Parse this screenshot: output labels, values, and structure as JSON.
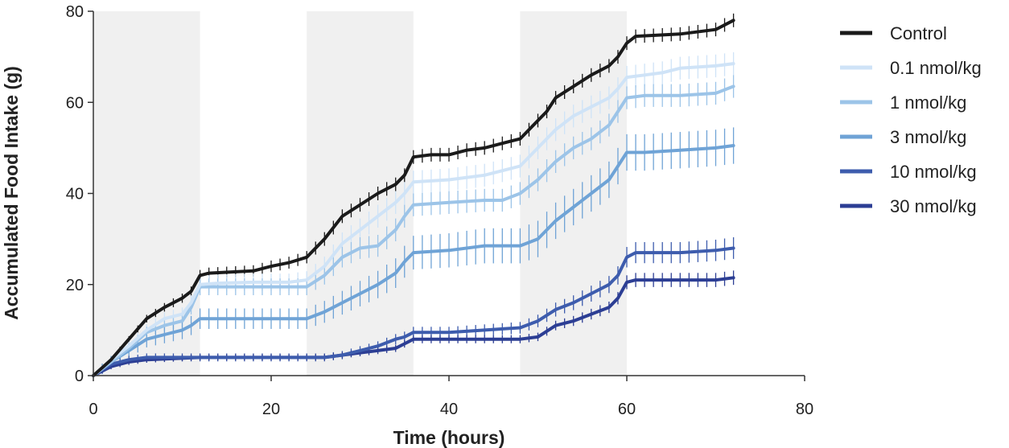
{
  "chart_data": {
    "type": "line",
    "title": "",
    "xlabel": "Time (hours)",
    "ylabel": "Accumulated Food Intake (g)",
    "xlim": [
      0,
      80
    ],
    "ylim": [
      0,
      80
    ],
    "x_ticks": [
      "0",
      "20",
      "40",
      "60",
      "80"
    ],
    "y_ticks": [
      "0",
      "20",
      "40",
      "60",
      "80"
    ],
    "dark_periods": [
      [
        0,
        12
      ],
      [
        24,
        36
      ],
      [
        48,
        60
      ]
    ],
    "shade_color": "#f0f0f0",
    "legend_position": "right",
    "error_bars": true,
    "series": [
      {
        "name": "Control",
        "color": "#1a1a1a",
        "points": [
          [
            0,
            0
          ],
          [
            2,
            3.5
          ],
          [
            4,
            8
          ],
          [
            6,
            12.5
          ],
          [
            8,
            15
          ],
          [
            10,
            17
          ],
          [
            11,
            18.5
          ],
          [
            12,
            22
          ],
          [
            13,
            22.5
          ],
          [
            18,
            23
          ],
          [
            20,
            24
          ],
          [
            22,
            24.8
          ],
          [
            24,
            26
          ],
          [
            26,
            30
          ],
          [
            28,
            35
          ],
          [
            30,
            37.5
          ],
          [
            32,
            40
          ],
          [
            34,
            42
          ],
          [
            35,
            44
          ],
          [
            36,
            48
          ],
          [
            38,
            48.5
          ],
          [
            40,
            48.5
          ],
          [
            42,
            49.5
          ],
          [
            44,
            50
          ],
          [
            46,
            51
          ],
          [
            48,
            52
          ],
          [
            50,
            56
          ],
          [
            51,
            58
          ],
          [
            52,
            61
          ],
          [
            54,
            63.5
          ],
          [
            56,
            66
          ],
          [
            58,
            68
          ],
          [
            59,
            70
          ],
          [
            60,
            73
          ],
          [
            61,
            74.5
          ],
          [
            66,
            75
          ],
          [
            70,
            76
          ],
          [
            72,
            78
          ]
        ],
        "error": 1.5
      },
      {
        "name": "0.1 nmol/kg",
        "color": "#cfe3f7",
        "points": [
          [
            0,
            0
          ],
          [
            2,
            3.5
          ],
          [
            4,
            6.5
          ],
          [
            6,
            10
          ],
          [
            8,
            12.5
          ],
          [
            10,
            13.5
          ],
          [
            11,
            16
          ],
          [
            12,
            20
          ],
          [
            14,
            20.3
          ],
          [
            18,
            20.5
          ],
          [
            22,
            20.5
          ],
          [
            24,
            21
          ],
          [
            26,
            24
          ],
          [
            28,
            29
          ],
          [
            30,
            32
          ],
          [
            32,
            35
          ],
          [
            34,
            38
          ],
          [
            35,
            40
          ],
          [
            36,
            42.5
          ],
          [
            40,
            43
          ],
          [
            44,
            44
          ],
          [
            46,
            45
          ],
          [
            48,
            46
          ],
          [
            50,
            50
          ],
          [
            52,
            54
          ],
          [
            54,
            57
          ],
          [
            56,
            59
          ],
          [
            58,
            61
          ],
          [
            59,
            63
          ],
          [
            60,
            65.5
          ],
          [
            62,
            66
          ],
          [
            64,
            66.5
          ],
          [
            66,
            67.5
          ],
          [
            70,
            68
          ],
          [
            72,
            68.5
          ]
        ],
        "error": 2.5
      },
      {
        "name": "1 nmol/kg",
        "color": "#9cc4e8",
        "points": [
          [
            0,
            0
          ],
          [
            2,
            3
          ],
          [
            4,
            6
          ],
          [
            6,
            9.5
          ],
          [
            8,
            11
          ],
          [
            10,
            12
          ],
          [
            11,
            15
          ],
          [
            12,
            19.5
          ],
          [
            14,
            19.5
          ],
          [
            20,
            19.5
          ],
          [
            24,
            19.5
          ],
          [
            26,
            22
          ],
          [
            28,
            26
          ],
          [
            30,
            28
          ],
          [
            32,
            28.5
          ],
          [
            34,
            32
          ],
          [
            35,
            35
          ],
          [
            36,
            37.5
          ],
          [
            40,
            38
          ],
          [
            44,
            38.5
          ],
          [
            46,
            38.5
          ],
          [
            48,
            40
          ],
          [
            50,
            43
          ],
          [
            52,
            47
          ],
          [
            54,
            50
          ],
          [
            56,
            52
          ],
          [
            58,
            55
          ],
          [
            59,
            58
          ],
          [
            60,
            61
          ],
          [
            62,
            61.5
          ],
          [
            66,
            61.5
          ],
          [
            70,
            62
          ],
          [
            72,
            63.5
          ]
        ],
        "error": 2.5
      },
      {
        "name": "3 nmol/kg",
        "color": "#6fa3d6",
        "points": [
          [
            0,
            0
          ],
          [
            2,
            3
          ],
          [
            4,
            5.5
          ],
          [
            6,
            8
          ],
          [
            8,
            9
          ],
          [
            10,
            10
          ],
          [
            11,
            11
          ],
          [
            12,
            12.5
          ],
          [
            14,
            12.5
          ],
          [
            24,
            12.5
          ],
          [
            26,
            14
          ],
          [
            28,
            16
          ],
          [
            30,
            18
          ],
          [
            32,
            20
          ],
          [
            34,
            22.5
          ],
          [
            35,
            25
          ],
          [
            36,
            27
          ],
          [
            40,
            27.5
          ],
          [
            44,
            28.5
          ],
          [
            46,
            28.5
          ],
          [
            48,
            28.5
          ],
          [
            50,
            30
          ],
          [
            52,
            34
          ],
          [
            54,
            37
          ],
          [
            56,
            40
          ],
          [
            58,
            43
          ],
          [
            59,
            46
          ],
          [
            60,
            49
          ],
          [
            62,
            49
          ],
          [
            66,
            49.5
          ],
          [
            70,
            50
          ],
          [
            72,
            50.5
          ]
        ],
        "error": 4
      },
      {
        "name": "10 nmol/kg",
        "color": "#3d5cad",
        "points": [
          [
            0,
            0
          ],
          [
            2,
            2.5
          ],
          [
            4,
            3.5
          ],
          [
            6,
            4
          ],
          [
            12,
            4
          ],
          [
            20,
            4
          ],
          [
            24,
            4
          ],
          [
            26,
            4
          ],
          [
            28,
            4.5
          ],
          [
            30,
            5.5
          ],
          [
            32,
            6.5
          ],
          [
            34,
            8
          ],
          [
            35,
            8.5
          ],
          [
            36,
            9.5
          ],
          [
            40,
            9.5
          ],
          [
            44,
            10
          ],
          [
            48,
            10.5
          ],
          [
            50,
            12
          ],
          [
            52,
            14.5
          ],
          [
            54,
            16
          ],
          [
            56,
            18
          ],
          [
            58,
            20
          ],
          [
            59,
            22
          ],
          [
            60,
            26
          ],
          [
            61,
            27
          ],
          [
            66,
            27
          ],
          [
            70,
            27.5
          ],
          [
            72,
            28
          ]
        ],
        "error": 2.5
      },
      {
        "name": "30 nmol/kg",
        "color": "#2c3e94",
        "points": [
          [
            0,
            0
          ],
          [
            2,
            2
          ],
          [
            4,
            3
          ],
          [
            6,
            3.5
          ],
          [
            12,
            4
          ],
          [
            24,
            4
          ],
          [
            26,
            4
          ],
          [
            28,
            4.5
          ],
          [
            30,
            5
          ],
          [
            32,
            5.5
          ],
          [
            34,
            6
          ],
          [
            35,
            7
          ],
          [
            36,
            8
          ],
          [
            40,
            8
          ],
          [
            44,
            8
          ],
          [
            48,
            8
          ],
          [
            50,
            8.5
          ],
          [
            52,
            11
          ],
          [
            54,
            12
          ],
          [
            56,
            13.5
          ],
          [
            58,
            15
          ],
          [
            59,
            17
          ],
          [
            60,
            20.5
          ],
          [
            61,
            21
          ],
          [
            66,
            21
          ],
          [
            70,
            21
          ],
          [
            72,
            21.5
          ]
        ],
        "error": 2
      }
    ]
  }
}
